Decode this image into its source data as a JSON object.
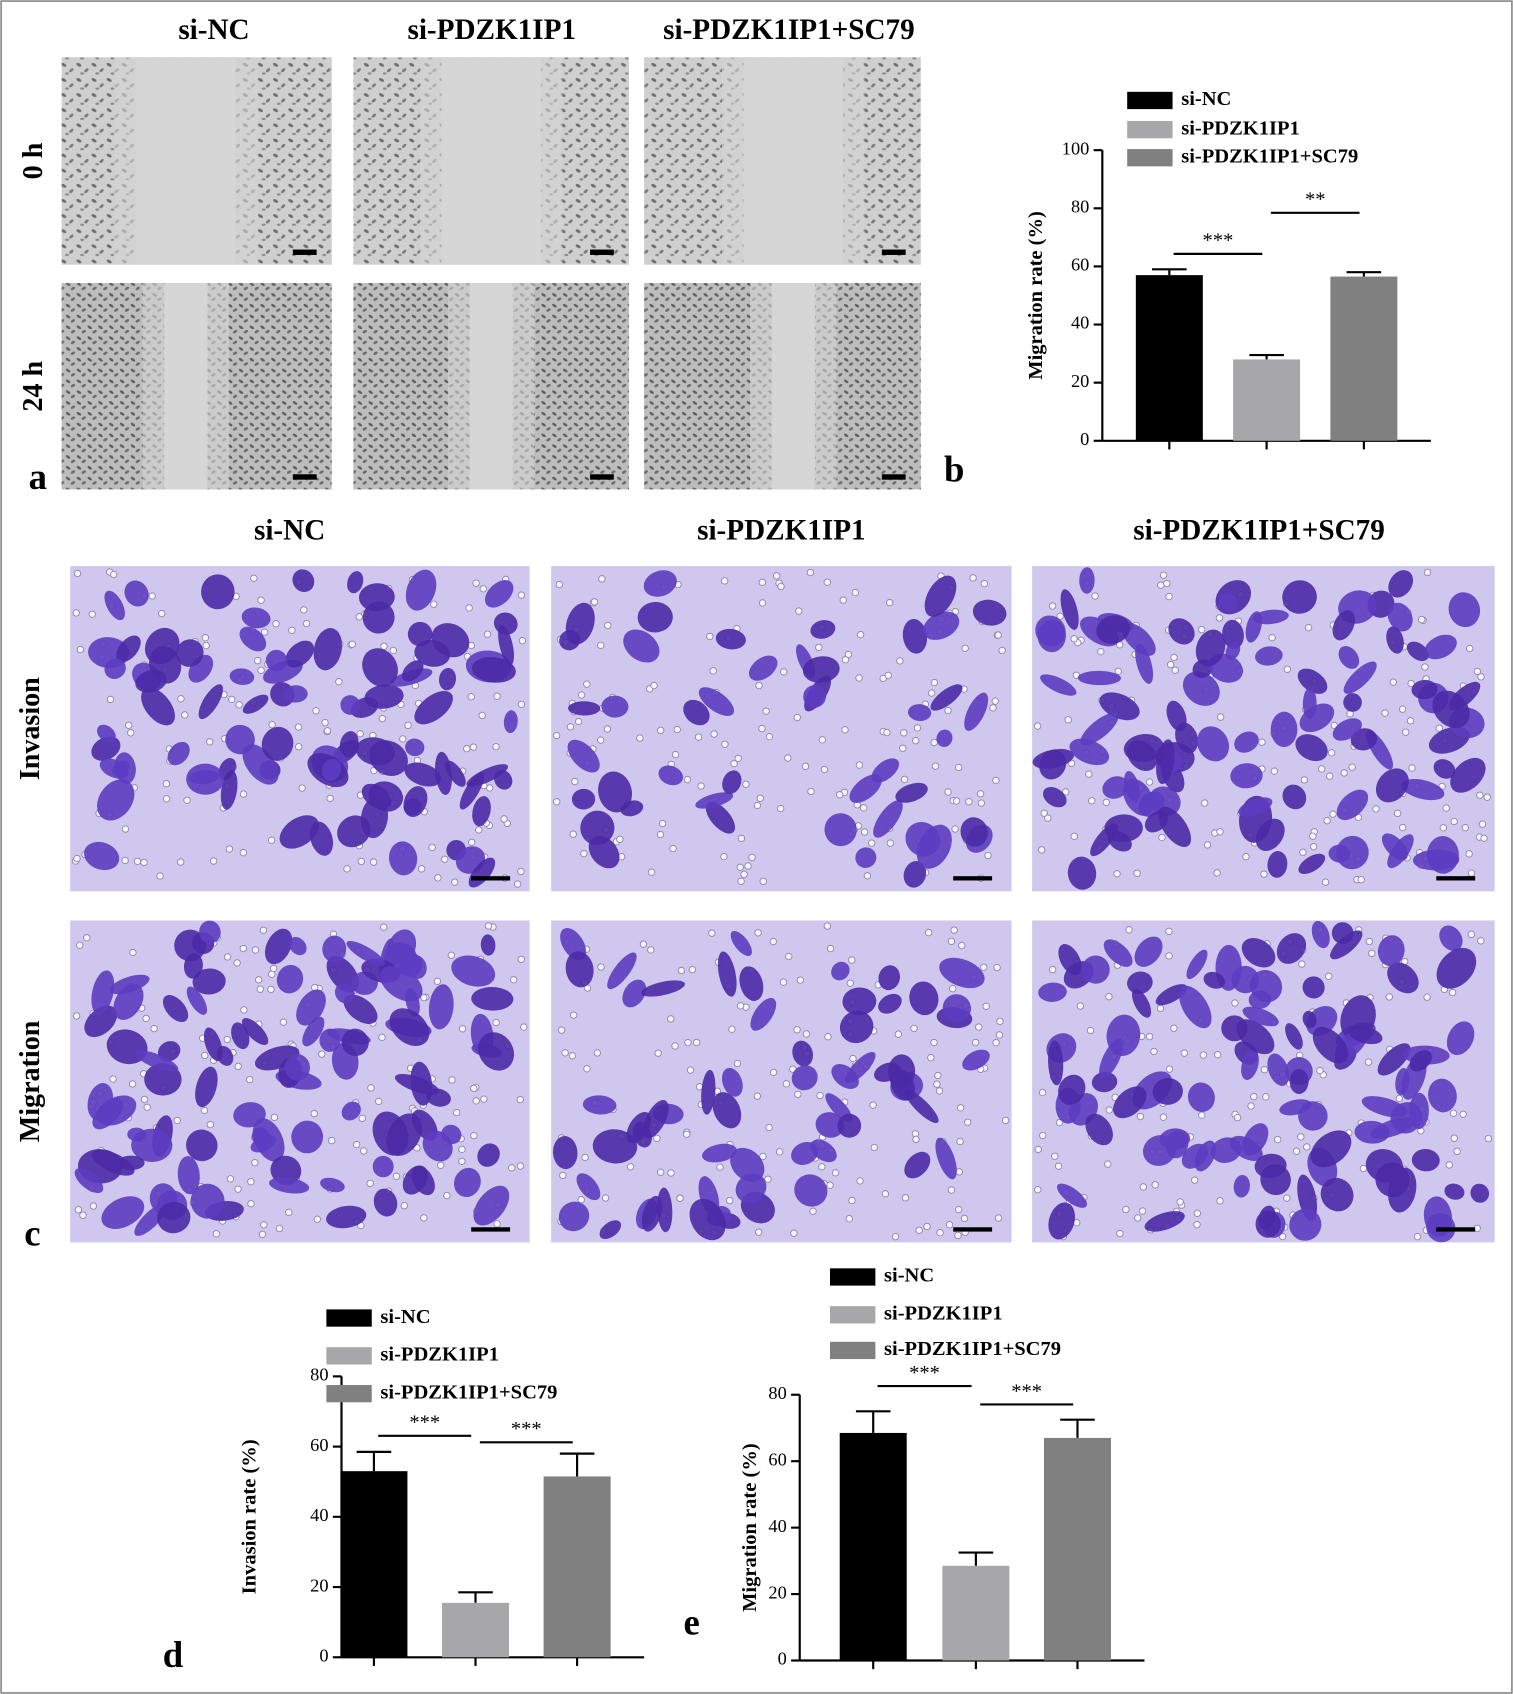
{
  "panel_labels": [
    "a",
    "b",
    "c",
    "d",
    "e"
  ],
  "panel_a": {
    "columns": [
      "si-NC",
      "si-PDZK1IP1",
      "si-PDZK1IP1+SC79"
    ],
    "rows": [
      "0 h",
      "24 h"
    ]
  },
  "panel_c": {
    "columns": [
      "si-NC",
      "si-PDZK1IP1",
      "si-PDZK1IP1+SC79"
    ],
    "rows": [
      "Invasion",
      "Migration"
    ]
  },
  "chart_data": [
    {
      "type": "bar",
      "y_label": "Migration rate (%)",
      "ylim": [
        0,
        100
      ],
      "yticks": [
        0,
        20,
        40,
        60,
        80,
        100
      ],
      "series": [
        {
          "name": "si-NC",
          "color": "#000000",
          "values": [
            57
          ],
          "errors": [
            2
          ]
        },
        {
          "name": "si-PDZK1IP1",
          "color": "#a7a7a9",
          "values": [
            28
          ],
          "errors": [
            1.5
          ]
        },
        {
          "name": "si-PDZK1IP1+SC79",
          "color": "#808080",
          "values": [
            56.5
          ],
          "errors": [
            1.5
          ]
        }
      ],
      "annotations": [
        "***",
        "**"
      ]
    },
    {
      "type": "bar",
      "y_label": "Invasion rate (%)",
      "ylim": [
        0,
        80
      ],
      "yticks": [
        0,
        20,
        40,
        60,
        80
      ],
      "series": [
        {
          "name": "si-NC",
          "color": "#000000",
          "values": [
            53
          ],
          "errors": [
            5.5
          ]
        },
        {
          "name": "si-PDZK1IP1",
          "color": "#a7a7a9",
          "values": [
            15.5
          ],
          "errors": [
            3
          ]
        },
        {
          "name": "si-PDZK1IP1+SC79",
          "color": "#808080",
          "values": [
            51.5
          ],
          "errors": [
            6.5
          ]
        }
      ],
      "annotations": [
        "***",
        "***"
      ]
    },
    {
      "type": "bar",
      "y_label": "Migration rate (%)",
      "ylim": [
        0,
        80
      ],
      "yticks": [
        0,
        20,
        40,
        60,
        80
      ],
      "series": [
        {
          "name": "si-NC",
          "color": "#000000",
          "values": [
            68.5
          ],
          "errors": [
            6.5
          ]
        },
        {
          "name": "si-PDZK1IP1",
          "color": "#a7a7a9",
          "values": [
            28.5
          ],
          "errors": [
            4
          ]
        },
        {
          "name": "si-PDZK1IP1+SC79",
          "color": "#808080",
          "values": [
            67
          ],
          "errors": [
            5.5
          ]
        }
      ],
      "annotations": [
        "***",
        "***"
      ]
    }
  ]
}
